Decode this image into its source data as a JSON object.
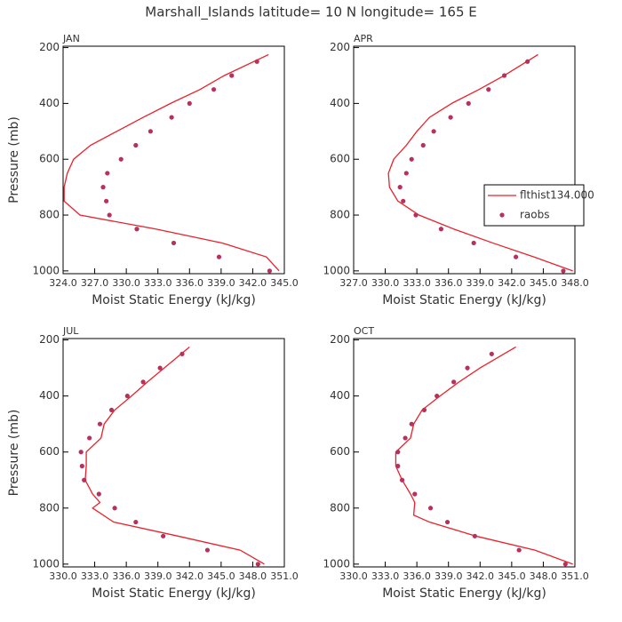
{
  "title": "Marshall_Islands  latitude= 10 N longitude= 165 E",
  "chart_data": [
    {
      "type": "line",
      "panel_label": "JAN",
      "x_label": "Moist Static Energy (kJ/kg)",
      "y_label": "Pressure (mb)",
      "xlim": [
        324,
        345
      ],
      "ylim": [
        1010,
        195
      ],
      "xticks": [
        {
          "value": 324,
          "label": "324.0"
        },
        {
          "value": 327,
          "label": "327.0"
        },
        {
          "value": 330,
          "label": "330.0"
        },
        {
          "value": 333,
          "label": "333.0"
        },
        {
          "value": 336,
          "label": "336.0"
        },
        {
          "value": 339,
          "label": "339.0"
        },
        {
          "value": 342,
          "label": "342.0"
        },
        {
          "value": 345,
          "label": "345.0"
        }
      ],
      "yticks": [
        200,
        400,
        600,
        800,
        1000
      ],
      "series": [
        {
          "name": "flthist134.000",
          "color": "#e8222b",
          "mode": "lines",
          "x": [
            343.5,
            339.3,
            337.0,
            334.2,
            331.6,
            329.1,
            326.6,
            325.0,
            324.4,
            324.1,
            324.1,
            325.6,
            332.8,
            339.1,
            343.3,
            344.5
          ],
          "y": [
            225,
            300,
            350,
            400,
            450,
            500,
            550,
            600,
            650,
            700,
            750,
            800,
            850,
            900,
            950,
            1000
          ]
        },
        {
          "name": "raobs",
          "color": "#b8305c",
          "mode": "markers",
          "x": [
            342.4,
            340.0,
            338.3,
            336.0,
            334.3,
            332.3,
            330.9,
            329.5,
            328.2,
            327.8,
            328.1,
            328.4,
            331.0,
            334.5,
            338.8,
            343.6
          ],
          "y": [
            250,
            300,
            350,
            400,
            450,
            500,
            550,
            600,
            650,
            700,
            750,
            800,
            850,
            900,
            950,
            1000
          ]
        }
      ]
    },
    {
      "type": "line",
      "panel_label": "APR",
      "x_label": "Moist Static Energy (kJ/kg)",
      "legend": "right",
      "xlim": [
        327,
        348
      ],
      "ylim": [
        1010,
        195
      ],
      "xticks": [
        {
          "value": 327,
          "label": "327.0"
        },
        {
          "value": 330,
          "label": "330.0"
        },
        {
          "value": 333,
          "label": "333.0"
        },
        {
          "value": 336,
          "label": "336.0"
        },
        {
          "value": 339,
          "label": "339.0"
        },
        {
          "value": 342,
          "label": "342.0"
        },
        {
          "value": 345,
          "label": "345.0"
        },
        {
          "value": 348,
          "label": "348.0"
        }
      ],
      "yticks": [
        200,
        400,
        600,
        800,
        1000
      ],
      "series": [
        {
          "name": "flthist134.000",
          "color": "#e8222b",
          "mode": "lines",
          "x": [
            344.5,
            341.3,
            338.9,
            336.3,
            334.2,
            333.0,
            332.0,
            330.8,
            330.3,
            330.4,
            331.2,
            333.2,
            336.5,
            340.2,
            344.1,
            347.8
          ],
          "y": [
            225,
            300,
            350,
            400,
            450,
            500,
            550,
            600,
            650,
            700,
            750,
            800,
            850,
            900,
            950,
            1000
          ]
        },
        {
          "name": "raobs",
          "color": "#b8305c",
          "mode": "markers",
          "x": [
            343.5,
            341.3,
            339.8,
            337.9,
            336.2,
            334.6,
            333.6,
            332.5,
            332.0,
            331.4,
            331.7,
            332.9,
            335.3,
            338.4,
            342.4,
            346.9
          ],
          "y": [
            250,
            300,
            350,
            400,
            450,
            500,
            550,
            600,
            650,
            700,
            750,
            800,
            850,
            900,
            950,
            1000
          ]
        }
      ]
    },
    {
      "type": "line",
      "panel_label": "JUL",
      "x_label": "Moist Static Energy (kJ/kg)",
      "y_label": "Pressure (mb)",
      "xlim": [
        330,
        351
      ],
      "ylim": [
        1010,
        195
      ],
      "xticks": [
        {
          "value": 330,
          "label": "330.0"
        },
        {
          "value": 333,
          "label": "333.0"
        },
        {
          "value": 336,
          "label": "336.0"
        },
        {
          "value": 339,
          "label": "339.0"
        },
        {
          "value": 342,
          "label": "342.0"
        },
        {
          "value": 345,
          "label": "345.0"
        },
        {
          "value": 348,
          "label": "348.0"
        },
        {
          "value": 351,
          "label": "351.0"
        }
      ],
      "yticks": [
        200,
        400,
        600,
        800,
        1000
      ],
      "series": [
        {
          "name": "flthist134.000",
          "color": "#e8222b",
          "mode": "lines",
          "x": [
            342.0,
            339.6,
            338.0,
            336.5,
            334.9,
            333.9,
            333.6,
            332.2,
            332.2,
            332.1,
            332.8,
            333.5,
            332.8,
            334.8,
            340.9,
            346.8,
            349.1
          ],
          "y": [
            225,
            300,
            350,
            400,
            450,
            500,
            550,
            600,
            650,
            700,
            750,
            780,
            800,
            850,
            900,
            950,
            1000
          ]
        },
        {
          "name": "raobs",
          "color": "#b8305c",
          "mode": "markers",
          "x": [
            341.3,
            339.2,
            337.6,
            336.1,
            334.6,
            333.5,
            332.5,
            331.7,
            331.8,
            332.0,
            333.4,
            334.9,
            336.9,
            339.5,
            343.7,
            348.5
          ],
          "y": [
            250,
            300,
            350,
            400,
            450,
            500,
            550,
            600,
            650,
            700,
            750,
            800,
            850,
            900,
            950,
            1000
          ]
        }
      ]
    },
    {
      "type": "line",
      "panel_label": "OCT",
      "x_label": "Moist Static Energy (kJ/kg)",
      "xlim": [
        330,
        351
      ],
      "ylim": [
        1010,
        195
      ],
      "xticks": [
        {
          "value": 330,
          "label": "330.0"
        },
        {
          "value": 333,
          "label": "333.0"
        },
        {
          "value": 336,
          "label": "336.0"
        },
        {
          "value": 339,
          "label": "339.0"
        },
        {
          "value": 342,
          "label": "342.0"
        },
        {
          "value": 345,
          "label": "345.0"
        },
        {
          "value": 348,
          "label": "348.0"
        },
        {
          "value": 351,
          "label": "351.0"
        }
      ],
      "yticks": [
        200,
        400,
        600,
        800,
        1000
      ],
      "series": [
        {
          "name": "flthist134.000",
          "color": "#e8222b",
          "mode": "lines",
          "x": [
            345.4,
            342.0,
            340.0,
            338.2,
            336.5,
            335.7,
            335.4,
            334.0,
            334.0,
            334.6,
            335.4,
            335.8,
            335.7,
            337.2,
            341.6,
            347.2,
            350.8
          ],
          "y": [
            225,
            300,
            350,
            400,
            450,
            500,
            550,
            600,
            650,
            700,
            750,
            780,
            825,
            850,
            900,
            950,
            1000
          ]
        },
        {
          "name": "raobs",
          "color": "#b8305c",
          "mode": "markers",
          "x": [
            343.1,
            340.8,
            339.5,
            337.9,
            336.7,
            335.5,
            334.9,
            334.2,
            334.2,
            334.6,
            335.8,
            337.3,
            338.9,
            341.5,
            345.7,
            350.1
          ],
          "y": [
            250,
            300,
            350,
            400,
            450,
            500,
            550,
            600,
            650,
            700,
            750,
            800,
            850,
            900,
            950,
            1000
          ]
        }
      ]
    }
  ]
}
